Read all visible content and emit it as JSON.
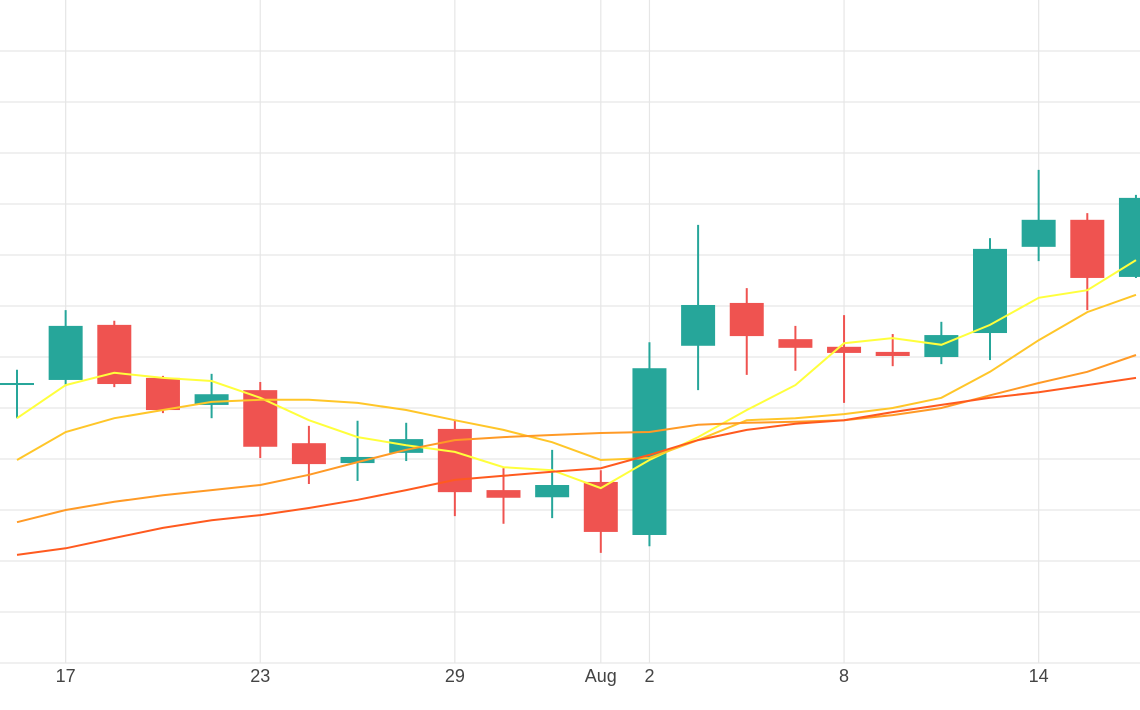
{
  "chart_data": {
    "type": "candlestick",
    "categories": [
      null,
      "17",
      null,
      null,
      null,
      "23",
      null,
      null,
      null,
      "29",
      null,
      null,
      "Aug",
      "2",
      null,
      null,
      null,
      "8",
      null,
      null,
      null,
      "14",
      null,
      null
    ],
    "open": [
      5.47,
      5.55,
      6.63,
      5.59,
      5.06,
      5.35,
      4.31,
      3.92,
      4.12,
      4.59,
      3.39,
      3.25,
      3.55,
      2.51,
      6.22,
      7.06,
      6.35,
      6.2,
      6.1,
      6.0,
      6.47,
      8.16,
      8.69,
      7.57
    ],
    "high": [
      5.75,
      6.92,
      6.71,
      5.63,
      5.67,
      5.51,
      4.65,
      4.75,
      4.71,
      4.75,
      3.82,
      4.18,
      3.78,
      6.29,
      8.59,
      7.35,
      6.61,
      6.82,
      6.45,
      6.69,
      8.33,
      9.67,
      8.82,
      9.18
    ],
    "low": [
      4.8,
      5.43,
      5.41,
      4.9,
      4.8,
      4.02,
      3.51,
      3.57,
      3.96,
      2.88,
      2.73,
      2.84,
      2.16,
      2.29,
      5.35,
      5.65,
      5.73,
      5.1,
      5.82,
      5.86,
      5.94,
      7.88,
      6.92,
      7.55
    ],
    "close": [
      5.49,
      6.61,
      5.47,
      4.96,
      5.27,
      4.24,
      3.9,
      4.04,
      4.39,
      3.35,
      3.24,
      3.49,
      2.57,
      5.78,
      7.02,
      6.41,
      6.18,
      6.08,
      6.02,
      6.43,
      8.12,
      8.69,
      7.55,
      9.12
    ],
    "increasing_color": "#26a69a",
    "decreasing_color": "#ef5350",
    "series": [
      {
        "color": "#ffff3c",
        "values": [
          4.8,
          5.45,
          5.69,
          5.59,
          5.53,
          5.2,
          4.76,
          4.43,
          4.27,
          4.14,
          3.84,
          3.78,
          3.43,
          3.98,
          4.43,
          4.96,
          5.45,
          6.27,
          6.37,
          6.24,
          6.63,
          7.16,
          7.31,
          7.9
        ]
      },
      {
        "color": "#ffc629",
        "values": [
          3.98,
          4.53,
          4.8,
          4.96,
          5.12,
          5.16,
          5.16,
          5.1,
          4.96,
          4.76,
          4.57,
          4.33,
          3.98,
          4.02,
          4.37,
          4.76,
          4.8,
          4.88,
          5.0,
          5.2,
          5.71,
          6.33,
          6.88,
          7.22
        ]
      },
      {
        "color": "#ff9a26",
        "values": [
          2.76,
          3.0,
          3.16,
          3.29,
          3.39,
          3.49,
          3.69,
          3.94,
          4.18,
          4.37,
          4.43,
          4.47,
          4.51,
          4.53,
          4.67,
          4.71,
          4.73,
          4.76,
          4.86,
          5.0,
          5.25,
          5.49,
          5.71,
          6.04
        ]
      },
      {
        "color": "#ff5a1f",
        "values": [
          2.12,
          2.25,
          2.45,
          2.65,
          2.8,
          2.9,
          3.04,
          3.2,
          3.39,
          3.59,
          3.67,
          3.75,
          3.82,
          4.08,
          4.37,
          4.57,
          4.69,
          4.76,
          4.92,
          5.06,
          5.2,
          5.31,
          5.45,
          5.59
        ]
      }
    ],
    "ylim": [
      0,
      13
    ],
    "yticks": [
      0,
      1,
      2,
      3,
      4,
      5,
      6,
      7,
      8,
      9,
      10,
      11,
      12
    ],
    "grid": true
  }
}
